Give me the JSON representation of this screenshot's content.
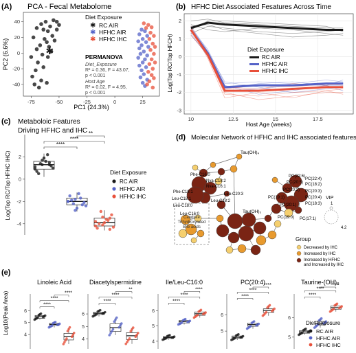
{
  "colors": {
    "rc_air": "#1a1a1a",
    "hfhc_air": "#5563c8",
    "hfhc_ihc": "#e8503a",
    "decreased": "#f5cf6e",
    "increased": "#e89a2e",
    "both": "#7a2414",
    "edge": "#6b6b6b"
  },
  "panels": {
    "a": {
      "letter": "(A)",
      "title": "PCA - Fecal Metabolome",
      "xlabel": "PC1 (24.3%)",
      "ylabel": "PC2 (6.6%)",
      "legend_title": "Diet Exposure",
      "legend_items": [
        "RC AIR",
        "HFHC AIR",
        "HFHC IHC"
      ],
      "stats_title": "PERMANOVA",
      "stats_lines": [
        "Diet_Exposure",
        "R² = 0.36, F = 43.07,",
        "p < 0.001",
        "Host Age",
        "R² = 0.02, F = 4.95,",
        "p < 0.001"
      ]
    },
    "b": {
      "letter": "(b)",
      "title": "HFHC Diet Associated Fesatures Across Time",
      "xlabel": "Host Age (weeks)",
      "ylabel": "Log(Top RC/Top HFCH)",
      "legend_title": "Diet Exposure",
      "legend_items": [
        "RC AIR",
        "HFHC AIR",
        "HFHC IHC"
      ]
    },
    "c": {
      "letter": "(c)",
      "title_lines": [
        "Metaboloic Features",
        "Driving HFHC and IHC"
      ],
      "ylabel": "Log(Top RC/Top HFHC IHC)",
      "legend_title": "Diet Exposure",
      "legend_items": [
        "RC AIR",
        "HFHC AIR",
        "HFHC IHC"
      ],
      "sig": [
        "****",
        "****",
        "**"
      ]
    },
    "d": {
      "letter": "(d)",
      "title": "Molecular Network of HFHC and IHC associated features",
      "node_labels": [
        "Tau(OH)₄",
        "Phe-C16:0",
        "Nva-C18:2",
        "Nva-C16:1",
        "Phe-C18:1",
        "Leu-C18:1",
        "Leu-C18:2",
        "Leu-C20:3",
        "Leu-C18:0",
        "Leu-C16:0",
        "PC(22:6)",
        "PC(22:4)",
        "PC(20:5)",
        "PC(18:2)",
        "PC(20:2)",
        "PC(20:3)",
        "PC(19:1)",
        "PC(20:4)",
        "PC(20:1)",
        "PC(18:3)",
        "PC(19:0)",
        "PC(17:1)",
        "Tau(OH)₃"
      ],
      "box_label": [
        "Candiate",
        "Trihydroxylated",
        "Bile acids"
      ],
      "vip_title": "VIP",
      "vip_values": [
        "1",
        "4.2"
      ],
      "group_title": "Group",
      "group_items": [
        "Decreased by IHC",
        "Increased by IHC",
        "Increased by HFHC",
        "and Increased by IHC"
      ]
    },
    "e": {
      "letter": "(e)",
      "ylabel": "Log10(Peak Area)",
      "legend_title": "Diet Exposure",
      "legend_items": [
        "RC AIR",
        "HFHC AIR",
        "HFHC IHC"
      ]
    }
  },
  "chart_data": [
    {
      "panel": "a",
      "type": "scatter",
      "title": "PCA - Fecal Metabolome",
      "xlabel": "PC1 (24.3%)",
      "ylabel": "PC2 (6.6%)",
      "xticks": [
        -75,
        -50,
        -25,
        0,
        25
      ],
      "yticks": [
        -40,
        -20,
        0,
        20,
        40
      ],
      "xlim": [
        -82,
        40
      ],
      "ylim": [
        -55,
        52
      ],
      "series": [
        {
          "name": "RC AIR",
          "points": [
            [
              -62,
              40
            ],
            [
              -66,
              37
            ],
            [
              -58,
              34
            ],
            [
              -55,
              42
            ],
            [
              -64,
              30
            ],
            [
              -60,
              28
            ],
            [
              -52,
              40
            ],
            [
              -70,
              32
            ],
            [
              -56,
              22
            ],
            [
              -63,
              18
            ],
            [
              -54,
              16
            ],
            [
              -67,
              10
            ],
            [
              -59,
              8
            ],
            [
              -61,
              14
            ],
            [
              -73,
              20
            ],
            [
              -70,
              5
            ],
            [
              -65,
              -2
            ],
            [
              -60,
              -5
            ],
            [
              -69,
              -12
            ],
            [
              -64,
              -18
            ],
            [
              -71,
              -22
            ],
            [
              -74,
              -30
            ],
            [
              -66,
              -35
            ],
            [
              -61,
              -38
            ],
            [
              -72,
              -40
            ],
            [
              -68,
              -44
            ],
            [
              -75,
              -5
            ],
            [
              -57,
              2
            ],
            [
              -52,
              30
            ],
            [
              -50,
              36
            ]
          ]
        },
        {
          "name": "HFHC AIR",
          "points": [
            [
              24,
              30
            ],
            [
              27,
              28
            ],
            [
              22,
              24
            ],
            [
              29,
              22
            ],
            [
              25,
              18
            ],
            [
              21,
              15
            ],
            [
              28,
              14
            ],
            [
              24,
              10
            ],
            [
              30,
              8
            ],
            [
              22,
              6
            ],
            [
              26,
              2
            ],
            [
              23,
              -1
            ],
            [
              29,
              -3
            ],
            [
              21,
              -6
            ],
            [
              27,
              -8
            ],
            [
              25,
              -12
            ],
            [
              22,
              -16
            ],
            [
              28,
              -18
            ],
            [
              24,
              -22
            ],
            [
              26,
              -27
            ],
            [
              23,
              -31
            ],
            [
              29,
              -34
            ],
            [
              25,
              -38
            ],
            [
              27,
              -42
            ]
          ]
        },
        {
          "name": "HFHC IHC",
          "points": [
            [
              26,
              38
            ],
            [
              30,
              36
            ],
            [
              33,
              33
            ],
            [
              28,
              32
            ],
            [
              32,
              26
            ],
            [
              35,
              22
            ],
            [
              31,
              18
            ],
            [
              34,
              12
            ],
            [
              36,
              8
            ],
            [
              32,
              4
            ],
            [
              35,
              -1
            ],
            [
              33,
              -8
            ],
            [
              36,
              -12
            ],
            [
              31,
              -14
            ],
            [
              34,
              -20
            ],
            [
              30,
              -24
            ],
            [
              33,
              -28
            ],
            [
              35,
              -32
            ],
            [
              31,
              -36
            ],
            [
              29,
              -40
            ],
            [
              34,
              -44
            ]
          ]
        }
      ],
      "centroid": [
        -59,
        3
      ]
    },
    {
      "panel": "b",
      "type": "line",
      "title": "HFHC Diet Associated Fesatures Across Time",
      "xlabel": "Host Age (weeks)",
      "ylabel": "Log(Top RC/Top HFCH)",
      "x": [
        10,
        11,
        12,
        14,
        16,
        18,
        19
      ],
      "xticks": [
        10,
        12.5,
        15,
        17.5
      ],
      "yticks": [
        -3,
        -2,
        -1,
        0,
        1,
        2
      ],
      "xlim": [
        9.6,
        19.6
      ],
      "ylim": [
        -3.2,
        2.4
      ],
      "series": [
        {
          "name": "RC AIR",
          "values": [
            1.6,
            1.9,
            1.8,
            1.7,
            1.6,
            1.5,
            1.5
          ]
        },
        {
          "name": "HFHC AIR",
          "values": [
            1.5,
            0.2,
            -1.7,
            -1.6,
            -1.6,
            -1.5,
            -1.5
          ]
        },
        {
          "name": "HFHC IHC",
          "values": [
            1.5,
            0.1,
            -1.9,
            -1.9,
            -1.8,
            -1.7,
            -1.7
          ]
        }
      ],
      "individual_lines": [
        {
          "group": "RC AIR",
          "values": [
            2.0,
            2.1,
            1.9,
            1.8,
            1.7,
            1.6,
            1.6
          ]
        },
        {
          "group": "RC AIR",
          "values": [
            1.7,
            1.8,
            1.5,
            1.3,
            1.1,
            1.2,
            1.3
          ]
        },
        {
          "group": "RC AIR",
          "values": [
            1.5,
            2.0,
            2.0,
            1.9,
            1.8,
            1.7,
            1.4
          ]
        },
        {
          "group": "RC AIR",
          "values": [
            1.3,
            1.7,
            1.6,
            1.4,
            1.3,
            1.4,
            1.5
          ]
        },
        {
          "group": "RC AIR",
          "values": [
            1.8,
            1.5,
            1.4,
            1.6,
            1.5,
            1.3,
            1.2
          ]
        },
        {
          "group": "HFHC AIR",
          "values": [
            1.6,
            0.4,
            -1.5,
            -1.4,
            -1.5,
            -1.3,
            -1.4
          ]
        },
        {
          "group": "HFHC AIR",
          "values": [
            1.3,
            0.0,
            -1.9,
            -1.8,
            -1.6,
            -1.6,
            -1.6
          ]
        },
        {
          "group": "HFHC AIR",
          "values": [
            1.7,
            0.3,
            -1.4,
            -1.7,
            -2.0,
            -1.8,
            -1.7
          ]
        },
        {
          "group": "HFHC AIR",
          "values": [
            1.2,
            0.1,
            -1.8,
            -1.5,
            -1.4,
            -1.6,
            -1.3
          ]
        },
        {
          "group": "HFHC AIR",
          "values": [
            1.4,
            0.2,
            -1.6,
            -2.1,
            -1.9,
            -1.6,
            -1.9
          ]
        },
        {
          "group": "HFHC IHC",
          "values": [
            1.5,
            0.0,
            -2.1,
            -2.2,
            -2.0,
            -1.9,
            -1.8
          ]
        },
        {
          "group": "HFHC IHC",
          "values": [
            1.4,
            0.2,
            -1.8,
            -1.6,
            -1.7,
            -1.5,
            -1.6
          ]
        },
        {
          "group": "HFHC IHC",
          "values": [
            1.7,
            0.0,
            -2.0,
            -2.4,
            -2.2,
            -2.0,
            -2.0
          ]
        },
        {
          "group": "HFHC IHC",
          "values": [
            1.2,
            0.1,
            -1.7,
            -1.8,
            -1.5,
            -1.6,
            -1.5
          ]
        },
        {
          "group": "HFHC IHC",
          "values": [
            1.6,
            -0.1,
            -2.3,
            -2.0,
            -2.3,
            -1.9,
            -2.1
          ]
        }
      ]
    },
    {
      "panel": "c",
      "type": "box",
      "title": "Metaboloic Features Driving HFHC and IHC",
      "ylabel": "Log(Top RC/Top HFHC IHC)",
      "yticks": [
        -4,
        -2,
        0,
        2
      ],
      "ylim": [
        -5,
        4
      ],
      "groups": [
        {
          "name": "RC AIR",
          "q1": 0.9,
          "median": 1.3,
          "q3": 1.6,
          "whisker_low": 0.2,
          "whisker_high": 2.3,
          "points": [
            1.1,
            1.3,
            1.5,
            0.7,
            1.9,
            1.2,
            0.5,
            1.6,
            1.0,
            1.4,
            2.2,
            0.9,
            1.7,
            1.3
          ]
        },
        {
          "name": "HFHC AIR",
          "q1": -2.3,
          "median": -2.0,
          "q3": -1.7,
          "whisker_low": -2.9,
          "whisker_high": -1.2,
          "points": [
            -2.0,
            -1.8,
            -2.3,
            -1.5,
            -2.6,
            -2.1,
            -1.9,
            -1.3,
            -2.4,
            -2.2,
            -1.7,
            -2.0,
            -2.8
          ]
        },
        {
          "name": "HFHC IHC",
          "q1": -4.2,
          "median": -3.9,
          "q3": -3.5,
          "whisker_low": -4.6,
          "whisker_high": -2.8,
          "points": [
            -3.8,
            -4.1,
            -3.5,
            -4.4,
            -3.9,
            -3.2,
            -4.0,
            -3.6,
            -4.3,
            -2.9,
            -3.7,
            -4.2,
            -3.4,
            -4.5
          ]
        }
      ],
      "significance": [
        {
          "from": 0,
          "to": 1,
          "label": "****"
        },
        {
          "from": 0,
          "to": 2,
          "label": "****"
        },
        {
          "from": 1,
          "to": 2,
          "label": "**"
        }
      ]
    },
    {
      "panel": "e",
      "type": "box",
      "ylabel": "Log10(Peak Area)",
      "groups_order": [
        "RC AIR",
        "HFHC AIR",
        "HFHC IHC"
      ],
      "subplots": [
        {
          "title": "Linoleic Acid",
          "yticks": [
            4,
            5,
            6
          ],
          "ylim": [
            2.8,
            7.4
          ],
          "boxes": [
            {
              "q1": 5.35,
              "median": 5.5,
              "q3": 5.6,
              "lo": 5.25,
              "hi": 5.75
            },
            {
              "q1": 4.75,
              "median": 4.85,
              "q3": 4.95,
              "lo": 4.6,
              "hi": 5.05
            },
            {
              "q1": 3.55,
              "median": 3.85,
              "q3": 4.1,
              "lo": 3.2,
              "hi": 4.6
            }
          ],
          "sig": [
            "****",
            "****",
            "****"
          ]
        },
        {
          "title": "Diacetylspermidine",
          "yticks": [
            4,
            5,
            6
          ],
          "ylim": [
            3.2,
            7.6
          ],
          "boxes": [
            {
              "q1": 5.95,
              "median": 6.05,
              "q3": 6.15,
              "lo": 5.8,
              "hi": 6.3
            },
            {
              "q1": 4.6,
              "median": 4.9,
              "q3": 5.2,
              "lo": 4.3,
              "hi": 5.7
            },
            {
              "q1": 3.95,
              "median": 4.25,
              "q3": 4.5,
              "lo": 3.6,
              "hi": 4.9
            }
          ],
          "sig": [
            "****",
            "****",
            "**"
          ]
        },
        {
          "title": "Ile/Leu-C16:0",
          "yticks": [
            4,
            5,
            6
          ],
          "ylim": [
            3.5,
            7.1
          ],
          "boxes": [
            {
              "q1": 4.18,
              "median": 4.25,
              "q3": 4.32,
              "lo": 4.1,
              "hi": 4.4
            },
            {
              "q1": 5.2,
              "median": 5.28,
              "q3": 5.36,
              "lo": 5.1,
              "hi": 5.45
            },
            {
              "q1": 5.7,
              "median": 5.8,
              "q3": 5.92,
              "lo": 5.55,
              "hi": 6.05
            }
          ],
          "sig": [
            "****",
            "****",
            "****"
          ]
        },
        {
          "title": "PC(20:4)",
          "yticks": [
            5,
            6
          ],
          "ylim": [
            3.9,
            7.3
          ],
          "boxes": [
            {
              "q1": 4.55,
              "median": 4.62,
              "q3": 4.7,
              "lo": 4.45,
              "hi": 4.8
            },
            {
              "q1": 5.3,
              "median": 5.4,
              "q3": 5.5,
              "lo": 5.15,
              "hi": 5.6
            },
            {
              "q1": 6.15,
              "median": 6.28,
              "q3": 6.38,
              "lo": 5.95,
              "hi": 6.6
            }
          ],
          "sig": [
            "****",
            "****",
            "****"
          ]
        },
        {
          "title": "Taurine-(OH)₃",
          "yticks": [
            5,
            6
          ],
          "ylim": [
            4.4,
            7.2
          ],
          "boxes": [
            {
              "q1": 5.2,
              "median": 5.27,
              "q3": 5.33,
              "lo": 5.12,
              "hi": 5.42
            },
            {
              "q1": 5.62,
              "median": 5.7,
              "q3": 5.8,
              "lo": 5.48,
              "hi": 5.95
            },
            {
              "q1": 6.42,
              "median": 6.5,
              "q3": 6.58,
              "lo": 6.3,
              "hi": 6.7
            }
          ],
          "sig": [
            "****",
            "****",
            "****"
          ]
        }
      ]
    }
  ]
}
